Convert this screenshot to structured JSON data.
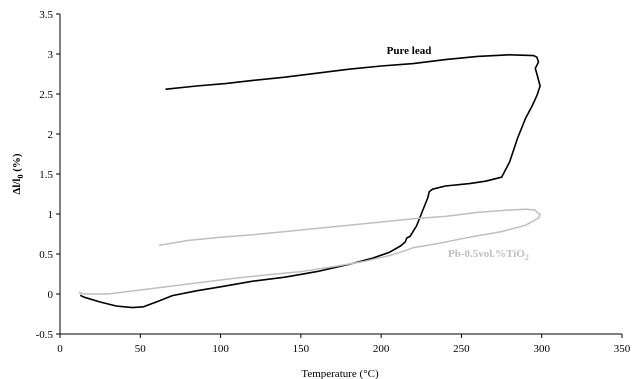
{
  "chart_data": {
    "type": "line",
    "title": "",
    "xlabel": "Temperature (°C)",
    "ylabel": {
      "main": "Δl/l",
      "sub": "0",
      "suffix": " (%)"
    },
    "xlim": [
      0,
      350
    ],
    "ylim": [
      -0.5,
      3.5
    ],
    "xticks": [
      0,
      50,
      100,
      150,
      200,
      250,
      300,
      350
    ],
    "xtick_labels": [
      "0",
      "50",
      "100",
      "150",
      "200",
      "250",
      "300",
      "350"
    ],
    "yticks": [
      -0.5,
      0,
      0.5,
      1,
      1.5,
      2,
      2.5,
      3,
      3.5
    ],
    "ytick_labels": [
      "-0.5",
      "0",
      "0.5",
      "1",
      "1.5",
      "2",
      "2.5",
      "3",
      "3.5"
    ],
    "grid": false,
    "series": [
      {
        "name": "Pure lead",
        "color": "#000000",
        "label_text": "Pure lead",
        "x": [
          13,
          15,
          25,
          35,
          45,
          52,
          60,
          70,
          85,
          100,
          120,
          140,
          160,
          180,
          195,
          205,
          212,
          215,
          216,
          218,
          222,
          226,
          229,
          230,
          232,
          240,
          255,
          265,
          275,
          280,
          285,
          290,
          294,
          297,
          299,
          297,
          296,
          298,
          297,
          295,
          280,
          260,
          240,
          220,
          200,
          180,
          160,
          140,
          120,
          103,
          85,
          66
        ],
        "y": [
          -0.02,
          -0.04,
          -0.1,
          -0.15,
          -0.17,
          -0.16,
          -0.1,
          -0.02,
          0.04,
          0.09,
          0.16,
          0.21,
          0.28,
          0.37,
          0.45,
          0.52,
          0.6,
          0.65,
          0.7,
          0.72,
          0.85,
          1.05,
          1.2,
          1.28,
          1.31,
          1.35,
          1.38,
          1.41,
          1.46,
          1.65,
          1.95,
          2.2,
          2.35,
          2.48,
          2.6,
          2.75,
          2.82,
          2.9,
          2.96,
          2.98,
          2.99,
          2.97,
          2.93,
          2.88,
          2.85,
          2.81,
          2.76,
          2.71,
          2.67,
          2.63,
          2.6,
          2.56
        ]
      },
      {
        "name": "Pb-0.5vol.%TiO2",
        "color": "#bfbfbf",
        "label_text": "Pb-0.5vol.%TiO",
        "label_sub": "2",
        "x": [
          13,
          12,
          15,
          30,
          50,
          70,
          90,
          110,
          130,
          150,
          170,
          190,
          205,
          215,
          220,
          235,
          255,
          275,
          290,
          298,
          299,
          297,
          296,
          290,
          280,
          260,
          240,
          220,
          200,
          180,
          160,
          140,
          120,
          100,
          80,
          62
        ],
        "y": [
          0.0,
          0.02,
          0.0,
          0.0,
          0.05,
          0.1,
          0.15,
          0.2,
          0.24,
          0.28,
          0.34,
          0.41,
          0.48,
          0.54,
          0.58,
          0.63,
          0.71,
          0.78,
          0.86,
          0.95,
          1.0,
          1.02,
          1.05,
          1.06,
          1.05,
          1.02,
          0.97,
          0.94,
          0.9,
          0.86,
          0.82,
          0.78,
          0.74,
          0.71,
          0.67,
          0.61
        ]
      }
    ]
  }
}
